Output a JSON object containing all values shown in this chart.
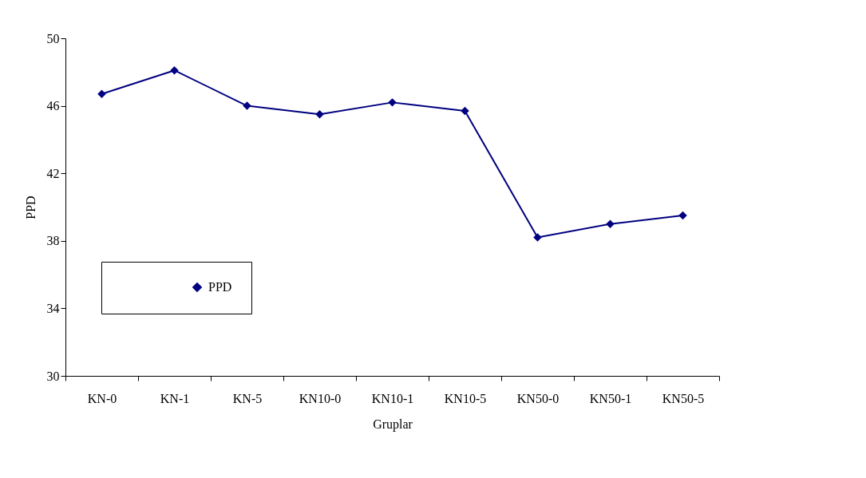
{
  "chart_data": {
    "type": "line",
    "xlabel": "Gruplar",
    "ylabel": "PPD",
    "categories": [
      "KN-0",
      "KN-1",
      "KN-5",
      "KN10-0",
      "KN10-1",
      "KN10-5",
      "KN50-0",
      "KN50-1",
      "KN50-5"
    ],
    "series": [
      {
        "name": "PPD",
        "color": "#000080",
        "values": [
          46.7,
          48.1,
          46.0,
          45.5,
          46.2,
          45.7,
          38.2,
          39.0,
          39.5
        ]
      }
    ],
    "ylim": [
      30,
      50
    ],
    "yticks": [
      30,
      34,
      38,
      42,
      46,
      50
    ],
    "grid": false,
    "legend": "bottom left",
    "marker": "diamond",
    "line_style": "solid"
  }
}
